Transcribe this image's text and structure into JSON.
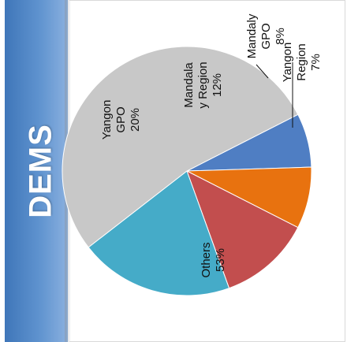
{
  "side_title": "DEMS",
  "chart_data": {
    "type": "pie",
    "title": "",
    "categories": [
      "Yangon Region",
      "Mandalay GPO",
      "Mandalay Region",
      "Yangon GPO",
      "Others"
    ],
    "values": [
      7,
      8,
      12,
      20,
      53
    ],
    "labels": [
      {
        "name": "Yangon Region",
        "lines": [
          "Yangon",
          "Region",
          "7%"
        ]
      },
      {
        "name": "Mandalay GPO",
        "lines": [
          "Mandaly",
          "GPO",
          "8%"
        ]
      },
      {
        "name": "Mandalay Region",
        "lines": [
          "Mandala",
          "y Region",
          "12%"
        ]
      },
      {
        "name": "Yangon GPO",
        "lines": [
          "Yangon",
          "GPO",
          "20%"
        ]
      },
      {
        "name": "Others",
        "lines": [
          "Others",
          "53%"
        ]
      }
    ],
    "colors": [
      "#4f7ec3",
      "#e8720f",
      "#c24e4e",
      "#45abc8",
      "#c8c8c8"
    ],
    "legend": "none"
  }
}
